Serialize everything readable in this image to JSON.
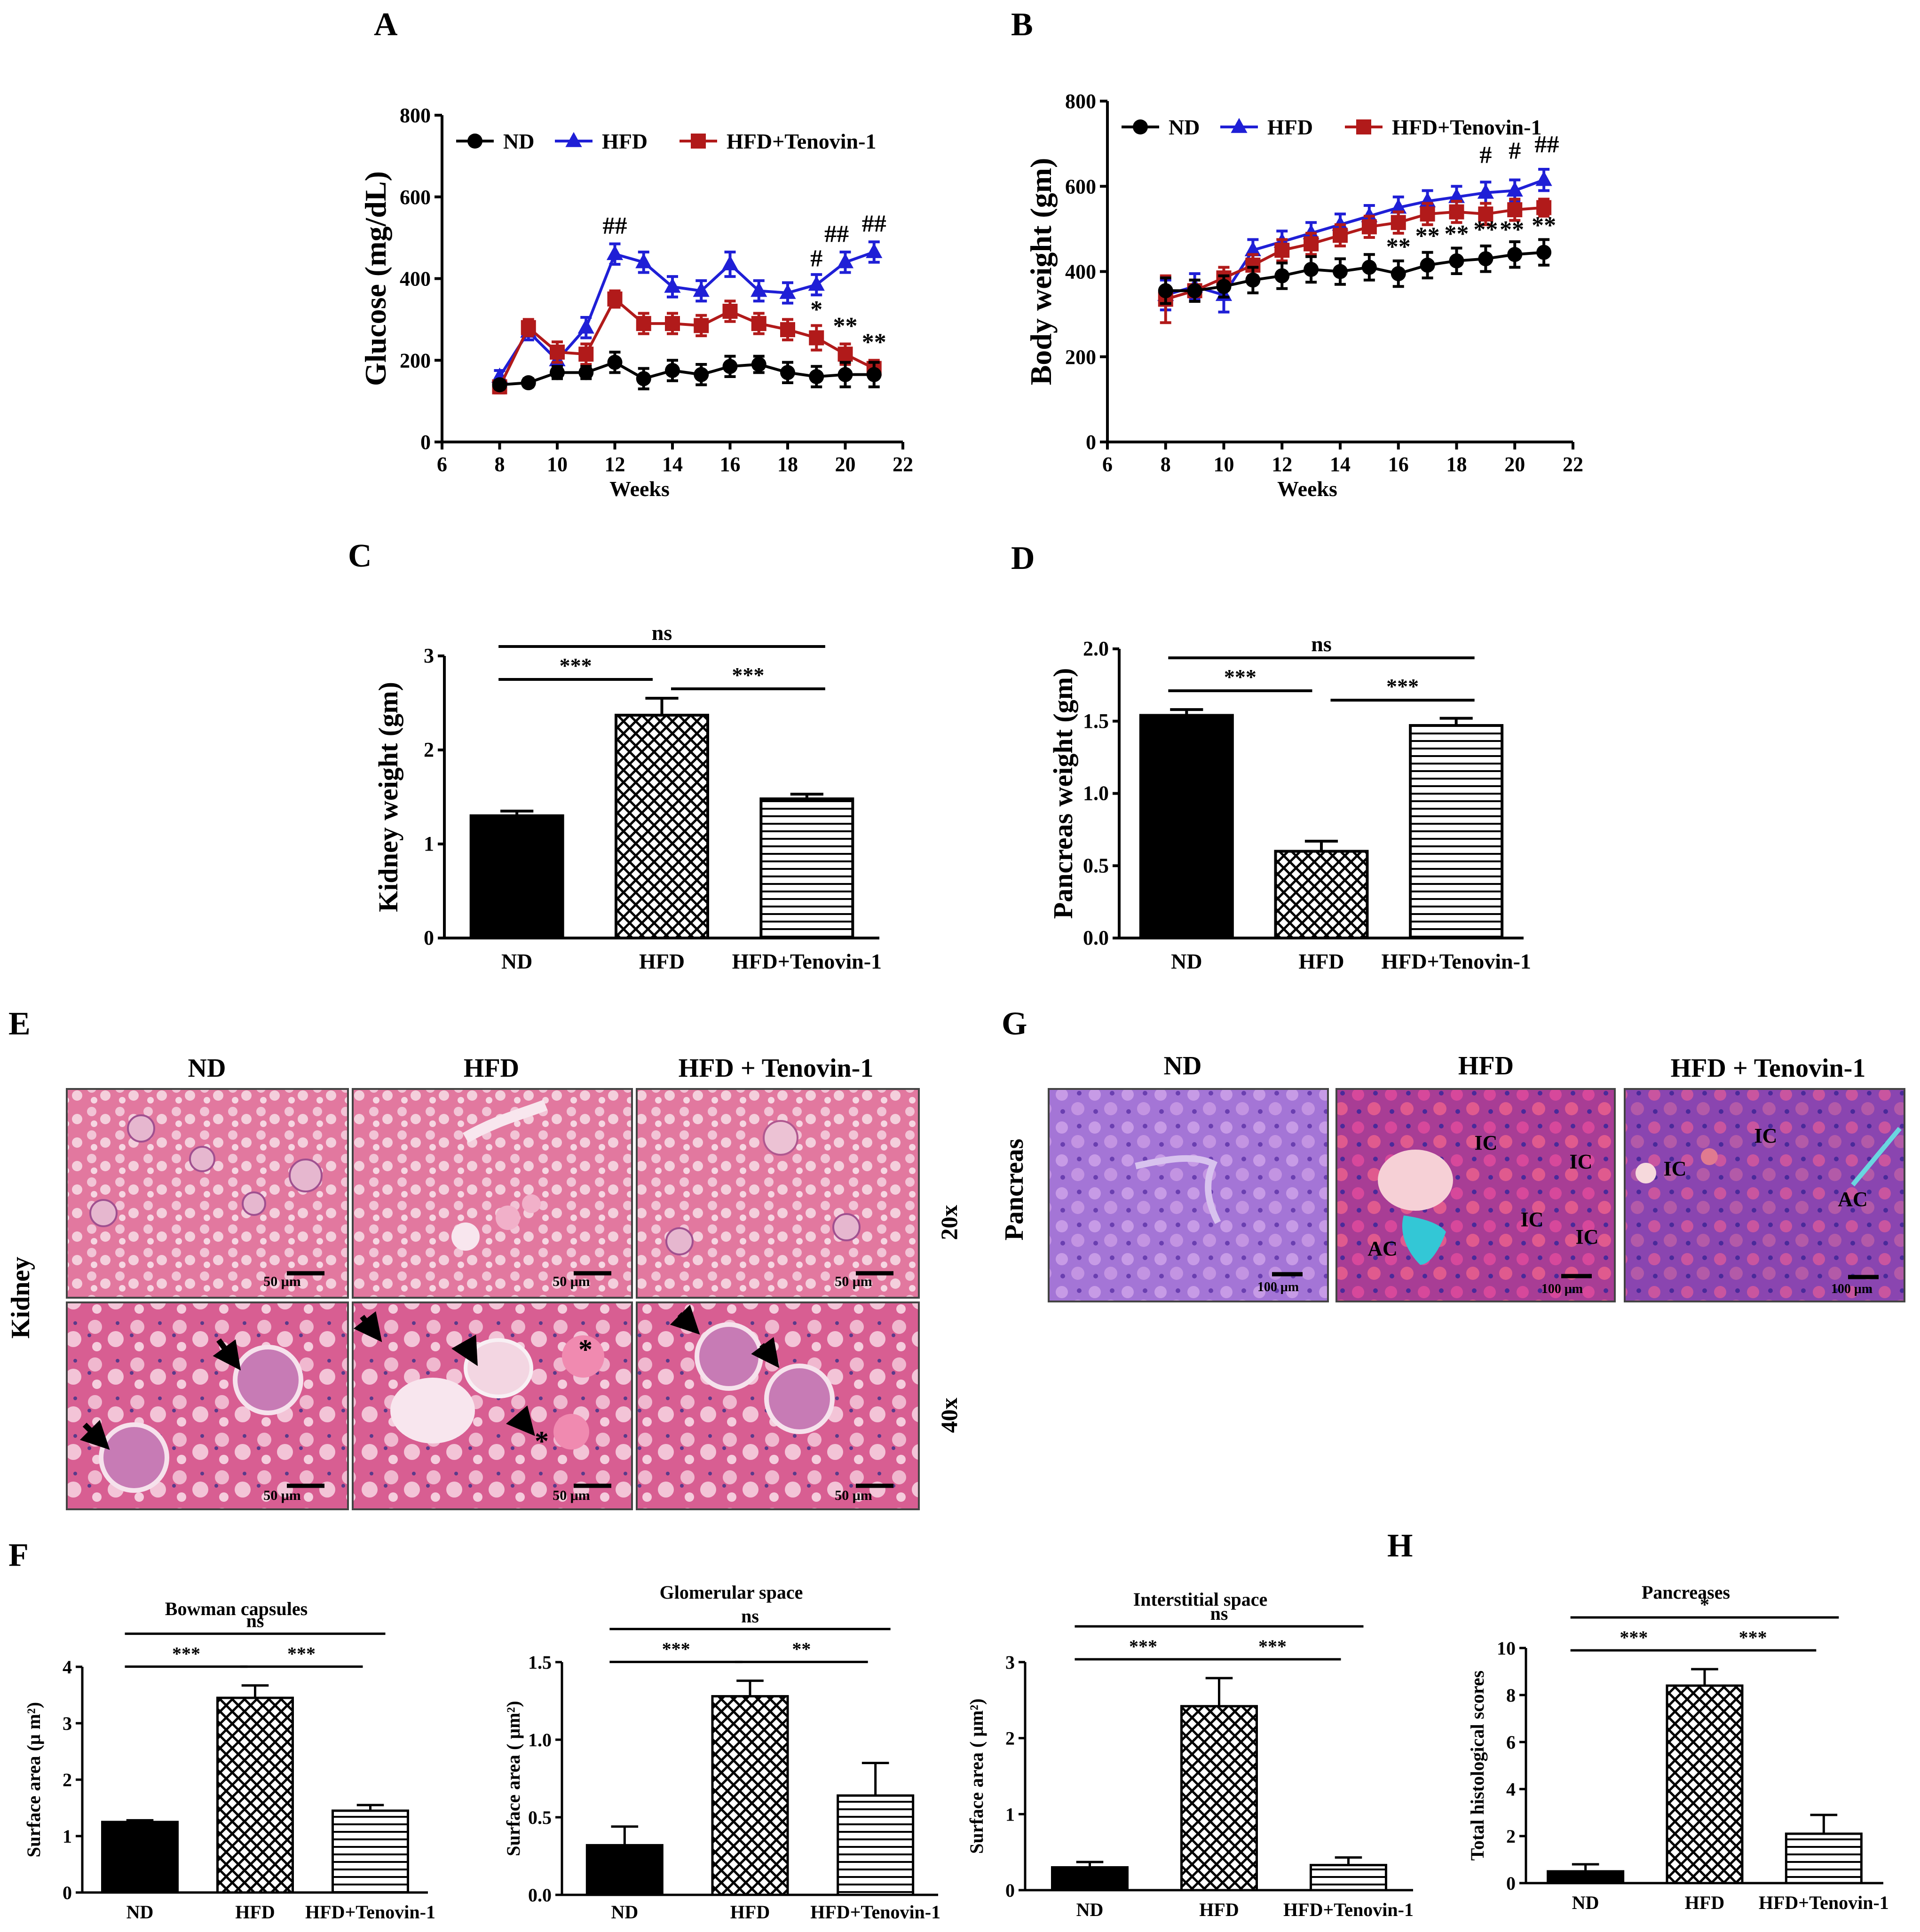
{
  "panels": {
    "A": "A",
    "B": "B",
    "C": "C",
    "D": "D",
    "E": "E",
    "F": "F",
    "G": "G",
    "H": "H"
  },
  "colors": {
    "nd": "#000000",
    "hfd": "#1f1fd6",
    "tenovin": "#b11a1a"
  },
  "chart_data": [
    {
      "id": "A",
      "type": "line",
      "title": "",
      "xlabel": "Weeks",
      "ylabel": "Glucose (mg/dL)",
      "xlim": [
        6,
        22
      ],
      "ylim": [
        0,
        800
      ],
      "xticks": [
        "6",
        "8",
        "10",
        "12",
        "14",
        "16",
        "18",
        "20",
        "22"
      ],
      "yticks": [
        "0",
        "200",
        "400",
        "600",
        "800"
      ],
      "legend": [
        "ND",
        "HFD",
        "HFD+Tenovin-1"
      ],
      "legend_position": "top",
      "series": [
        {
          "name": "ND",
          "marker": "circle",
          "x": [
            8,
            9,
            10,
            11,
            12,
            13,
            14,
            15,
            16,
            17,
            18,
            19,
            20,
            21
          ],
          "y": [
            140,
            145,
            170,
            170,
            195,
            155,
            175,
            165,
            185,
            190,
            170,
            160,
            165,
            165
          ],
          "err": [
            10,
            10,
            15,
            15,
            25,
            25,
            25,
            25,
            25,
            20,
            25,
            25,
            30,
            30
          ]
        },
        {
          "name": "HFD",
          "marker": "triangle",
          "x": [
            8,
            9,
            10,
            11,
            12,
            13,
            14,
            15,
            16,
            17,
            18,
            19,
            20,
            21
          ],
          "y": [
            160,
            270,
            200,
            280,
            460,
            440,
            380,
            370,
            435,
            370,
            365,
            385,
            440,
            465
          ],
          "err": [
            15,
            20,
            15,
            25,
            25,
            25,
            25,
            25,
            30,
            25,
            25,
            25,
            25,
            25
          ]
        },
        {
          "name": "HFD+Tenovin-1",
          "marker": "square",
          "x": [
            8,
            9,
            10,
            11,
            12,
            13,
            14,
            15,
            16,
            17,
            18,
            19,
            20,
            21
          ],
          "y": [
            135,
            280,
            220,
            215,
            350,
            290,
            290,
            285,
            320,
            290,
            275,
            255,
            215,
            180
          ],
          "err": [
            15,
            20,
            25,
            25,
            20,
            25,
            25,
            25,
            25,
            25,
            25,
            30,
            25,
            20
          ]
        }
      ],
      "annotations": [
        {
          "text": "##",
          "x": 12,
          "y": 510
        },
        {
          "text": "#",
          "x": 19,
          "y": 430
        },
        {
          "text": "##",
          "x": 19.7,
          "y": 490
        },
        {
          "text": "##",
          "x": 21,
          "y": 515
        },
        {
          "text": "*",
          "x": 19,
          "y": 305
        },
        {
          "text": "**",
          "x": 20,
          "y": 265
        },
        {
          "text": "**",
          "x": 21,
          "y": 225
        }
      ]
    },
    {
      "id": "B",
      "type": "line",
      "title": "",
      "xlabel": "Weeks",
      "ylabel": "Body weight (gm)",
      "xlim": [
        6,
        22
      ],
      "ylim": [
        0,
        800
      ],
      "xticks": [
        "6",
        "8",
        "10",
        "12",
        "14",
        "16",
        "18",
        "20",
        "22"
      ],
      "yticks": [
        "0",
        "200",
        "400",
        "600",
        "800"
      ],
      "legend": [
        "ND",
        "HFD",
        "HFD+Tenovin-1"
      ],
      "legend_position": "top",
      "series": [
        {
          "name": "ND",
          "marker": "circle",
          "x": [
            8,
            9,
            10,
            11,
            12,
            13,
            14,
            15,
            16,
            17,
            18,
            19,
            20,
            21
          ],
          "y": [
            355,
            355,
            365,
            380,
            390,
            405,
            400,
            410,
            395,
            415,
            425,
            430,
            440,
            445
          ],
          "err": [
            30,
            25,
            25,
            30,
            30,
            30,
            30,
            30,
            30,
            30,
            30,
            30,
            30,
            30
          ]
        },
        {
          "name": "HFD",
          "marker": "triangle",
          "x": [
            8,
            9,
            10,
            11,
            12,
            13,
            14,
            15,
            16,
            17,
            18,
            19,
            20,
            21
          ],
          "y": [
            345,
            365,
            345,
            450,
            470,
            490,
            510,
            530,
            550,
            565,
            575,
            585,
            590,
            615
          ],
          "err": [
            35,
            30,
            40,
            25,
            25,
            25,
            25,
            25,
            25,
            25,
            25,
            25,
            25,
            25
          ]
        },
        {
          "name": "HFD+Tenovin-1",
          "marker": "square",
          "x": [
            8,
            9,
            10,
            11,
            12,
            13,
            14,
            15,
            16,
            17,
            18,
            19,
            20,
            21
          ],
          "y": [
            335,
            355,
            385,
            415,
            450,
            465,
            485,
            505,
            515,
            535,
            540,
            535,
            545,
            550
          ],
          "err": [
            55,
            25,
            25,
            25,
            25,
            25,
            25,
            25,
            25,
            25,
            25,
            25,
            25,
            20
          ]
        }
      ],
      "annotations": [
        {
          "text": "#",
          "x": 19,
          "y": 655
        },
        {
          "text": "#",
          "x": 20,
          "y": 665
        },
        {
          "text": "##",
          "x": 21.1,
          "y": 680
        },
        {
          "text": "**",
          "x": 16,
          "y": 440
        },
        {
          "text": "**",
          "x": 17,
          "y": 465
        },
        {
          "text": "**",
          "x": 18,
          "y": 470
        },
        {
          "text": "**",
          "x": 19,
          "y": 480
        },
        {
          "text": "**",
          "x": 19.9,
          "y": 480
        },
        {
          "text": "**",
          "x": 21,
          "y": 490
        }
      ]
    },
    {
      "id": "C",
      "type": "bar",
      "title": "",
      "xlabel": "",
      "ylabel": "Kidney weight (gm)",
      "categories": [
        "ND",
        "HFD",
        "HFD+Tenovin-1"
      ],
      "values": [
        1.3,
        2.37,
        1.48
      ],
      "errors": [
        0.05,
        0.18,
        0.05
      ],
      "patterns": [
        "solid",
        "cross",
        "hlines"
      ],
      "ylim": [
        0,
        3
      ],
      "yticks": [
        "0",
        "1",
        "2",
        "3"
      ],
      "brackets": [
        {
          "from": 0,
          "to": 2,
          "label": "ns",
          "level": 0
        },
        {
          "from": 0,
          "to": 1,
          "label": "***",
          "level": 1
        },
        {
          "from": 1,
          "to": 2,
          "label": "***",
          "level": 2
        }
      ]
    },
    {
      "id": "D",
      "type": "bar",
      "title": "",
      "xlabel": "",
      "ylabel": "Pancreas weight (gm)",
      "categories": [
        "ND",
        "HFD",
        "HFD+Tenovin-1"
      ],
      "values": [
        1.54,
        0.6,
        1.47
      ],
      "errors": [
        0.04,
        0.07,
        0.05
      ],
      "patterns": [
        "solid",
        "cross",
        "hlines"
      ],
      "ylim": [
        0,
        2.0
      ],
      "yticks": [
        "0.0",
        "0.5",
        "1.0",
        "1.5",
        "2.0"
      ],
      "brackets": [
        {
          "from": 0,
          "to": 2,
          "label": "ns",
          "level": 0
        },
        {
          "from": 0,
          "to": 1,
          "label": "***",
          "level": 1
        },
        {
          "from": 1,
          "to": 2,
          "label": "***",
          "level": 2
        }
      ]
    },
    {
      "id": "F1",
      "type": "bar",
      "title": "Bowman capsules",
      "xlabel": "",
      "ylabel": "Surface area (μ m²)",
      "categories": [
        "ND",
        "HFD",
        "HFD+Tenovin-1"
      ],
      "values": [
        1.25,
        3.45,
        1.45
      ],
      "errors": [
        0.03,
        0.22,
        0.1
      ],
      "patterns": [
        "solid",
        "cross",
        "hlines"
      ],
      "ylim": [
        0,
        4
      ],
      "yticks": [
        "0",
        "1",
        "2",
        "3",
        "4"
      ],
      "brackets": [
        {
          "from": 0,
          "to": 2,
          "label": "ns",
          "level": 0
        },
        {
          "from": 0,
          "to": 1,
          "label": "***",
          "level": 1
        },
        {
          "from": 1,
          "to": 2,
          "label": "***",
          "level": 1
        }
      ]
    },
    {
      "id": "F2",
      "type": "bar",
      "title": "Glomerular space",
      "xlabel": "",
      "ylabel": "Surface area ( μm²)",
      "categories": [
        "ND",
        "HFD",
        "HFD+Tenovin-1"
      ],
      "values": [
        0.32,
        1.28,
        0.64
      ],
      "errors": [
        0.12,
        0.1,
        0.21
      ],
      "patterns": [
        "solid",
        "cross",
        "hlines"
      ],
      "ylim": [
        0,
        1.5
      ],
      "yticks": [
        "0.0",
        "0.5",
        "1.0",
        "1.5"
      ],
      "brackets": [
        {
          "from": 0,
          "to": 2,
          "label": "ns",
          "level": 0
        },
        {
          "from": 0,
          "to": 1,
          "label": "***",
          "level": 1
        },
        {
          "from": 1,
          "to": 2,
          "label": "**",
          "level": 1
        }
      ]
    },
    {
      "id": "F3",
      "type": "bar",
      "title": "Interstitial space",
      "xlabel": "",
      "ylabel": "Surface area ( μm²)",
      "categories": [
        "ND",
        "HFD",
        "HFD+Tenovin-1"
      ],
      "values": [
        0.3,
        2.42,
        0.33
      ],
      "errors": [
        0.07,
        0.37,
        0.1
      ],
      "patterns": [
        "solid",
        "cross",
        "hlines"
      ],
      "ylim": [
        0,
        3
      ],
      "yticks": [
        "0",
        "1",
        "2",
        "3"
      ],
      "brackets": [
        {
          "from": 0,
          "to": 2,
          "label": "ns",
          "level": 0
        },
        {
          "from": 0,
          "to": 1,
          "label": "***",
          "level": 1
        },
        {
          "from": 1,
          "to": 2,
          "label": "***",
          "level": 1
        }
      ]
    },
    {
      "id": "H1",
      "type": "bar",
      "title": "Pancreases",
      "xlabel": "",
      "ylabel": "Total histological scores",
      "categories": [
        "ND",
        "HFD",
        "HFD+Tenovin-1"
      ],
      "values": [
        0.5,
        8.4,
        2.1
      ],
      "errors": [
        0.3,
        0.7,
        0.8
      ],
      "patterns": [
        "solid",
        "cross",
        "hlines"
      ],
      "ylim": [
        0,
        10
      ],
      "yticks": [
        "0",
        "2",
        "4",
        "6",
        "8",
        "10"
      ],
      "brackets": [
        {
          "from": 0,
          "to": 2,
          "label": "*",
          "level": 0
        },
        {
          "from": 0,
          "to": 1,
          "label": "***",
          "level": 1
        },
        {
          "from": 1,
          "to": 2,
          "label": "***",
          "level": 1
        }
      ]
    }
  ],
  "histology": {
    "E": {
      "row_label": "Kidney",
      "columns": [
        "ND",
        "HFD",
        "HFD + Tenovin-1"
      ],
      "magnifications": [
        "20x",
        "40x"
      ],
      "scale_bar": "50 μm",
      "markers": [
        {
          "row": 1,
          "col": 0,
          "symbol": "arrow"
        },
        {
          "row": 1,
          "col": 0,
          "symbol": "arrow"
        },
        {
          "row": 1,
          "col": 1,
          "symbol": "arrow"
        },
        {
          "row": 1,
          "col": 1,
          "symbol": "arrow"
        },
        {
          "row": 1,
          "col": 1,
          "symbol": "arrow"
        },
        {
          "row": 1,
          "col": 1,
          "symbol": "*"
        },
        {
          "row": 1,
          "col": 1,
          "symbol": "*"
        },
        {
          "row": 1,
          "col": 2,
          "symbol": "arrow"
        },
        {
          "row": 1,
          "col": 2,
          "symbol": "arrow"
        }
      ]
    },
    "G": {
      "row_label": "Pancreas",
      "columns": [
        "ND",
        "HFD",
        "HFD + Tenovin-1"
      ],
      "scale_bar": "100 μm",
      "labels": {
        "ic": "IC",
        "ac": "AC"
      }
    }
  }
}
